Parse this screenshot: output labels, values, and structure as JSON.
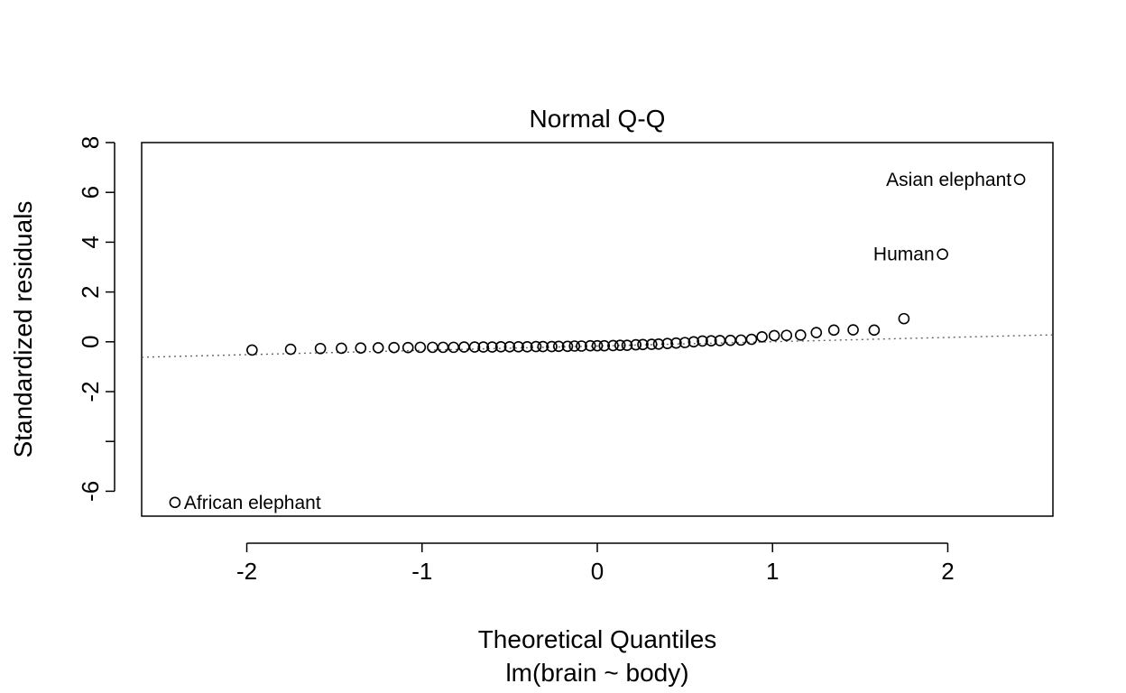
{
  "chart_data": {
    "type": "scatter",
    "title": "Normal Q-Q",
    "xlabel": "Theoretical Quantiles",
    "xlabel_sub": "lm(brain ~ body)",
    "ylabel": "Standardized residuals",
    "xlim": [
      -2.6,
      2.6
    ],
    "ylim": [
      -7.0,
      8.0
    ],
    "xticks": [
      -2,
      -1,
      0,
      1,
      2
    ],
    "xtick_labels": [
      "-2",
      "-1",
      "0",
      "1",
      "2"
    ],
    "yticks": [
      -6,
      -4,
      -2,
      0,
      2,
      4,
      6,
      8
    ],
    "ytick_labels": [
      "-6",
      "",
      "-2",
      "0",
      "2",
      "4",
      "6",
      "8"
    ],
    "grid": false,
    "reference_line": {
      "x": [
        -2.6,
        2.6
      ],
      "y": [
        -0.62,
        0.28
      ]
    },
    "points": {
      "x": [
        -2.41,
        -1.97,
        -1.75,
        -1.58,
        -1.46,
        -1.35,
        -1.25,
        -1.16,
        -1.08,
        -1.01,
        -0.94,
        -0.88,
        -0.82,
        -0.76,
        -0.7,
        -0.65,
        -0.6,
        -0.55,
        -0.5,
        -0.45,
        -0.4,
        -0.35,
        -0.31,
        -0.26,
        -0.22,
        -0.17,
        -0.13,
        -0.09,
        -0.04,
        0.0,
        0.04,
        0.09,
        0.13,
        0.17,
        0.22,
        0.26,
        0.31,
        0.35,
        0.4,
        0.45,
        0.5,
        0.55,
        0.6,
        0.65,
        0.7,
        0.76,
        0.82,
        0.88,
        0.94,
        1.01,
        1.08,
        1.16,
        1.25,
        1.35,
        1.46,
        1.58,
        1.75,
        1.97,
        2.41
      ],
      "y": [
        -6.45,
        -0.33,
        -0.3,
        -0.27,
        -0.26,
        -0.25,
        -0.24,
        -0.23,
        -0.23,
        -0.22,
        -0.22,
        -0.22,
        -0.22,
        -0.21,
        -0.21,
        -0.21,
        -0.21,
        -0.2,
        -0.2,
        -0.2,
        -0.2,
        -0.19,
        -0.19,
        -0.19,
        -0.18,
        -0.18,
        -0.17,
        -0.17,
        -0.16,
        -0.16,
        -0.16,
        -0.15,
        -0.14,
        -0.14,
        -0.12,
        -0.11,
        -0.1,
        -0.09,
        -0.07,
        -0.05,
        -0.03,
        0.0,
        0.03,
        0.04,
        0.05,
        0.06,
        0.07,
        0.1,
        0.2,
        0.25,
        0.26,
        0.27,
        0.37,
        0.47,
        0.48,
        0.47,
        0.93,
        3.52,
        6.52
      ]
    },
    "annotations": [
      {
        "text": "African elephant",
        "x": -2.41,
        "y": -6.45,
        "side": "right"
      },
      {
        "text": "Human",
        "x": 1.97,
        "y": 3.52,
        "side": "left"
      },
      {
        "text": "Asian elephant",
        "x": 2.41,
        "y": 6.52,
        "side": "left"
      }
    ]
  }
}
